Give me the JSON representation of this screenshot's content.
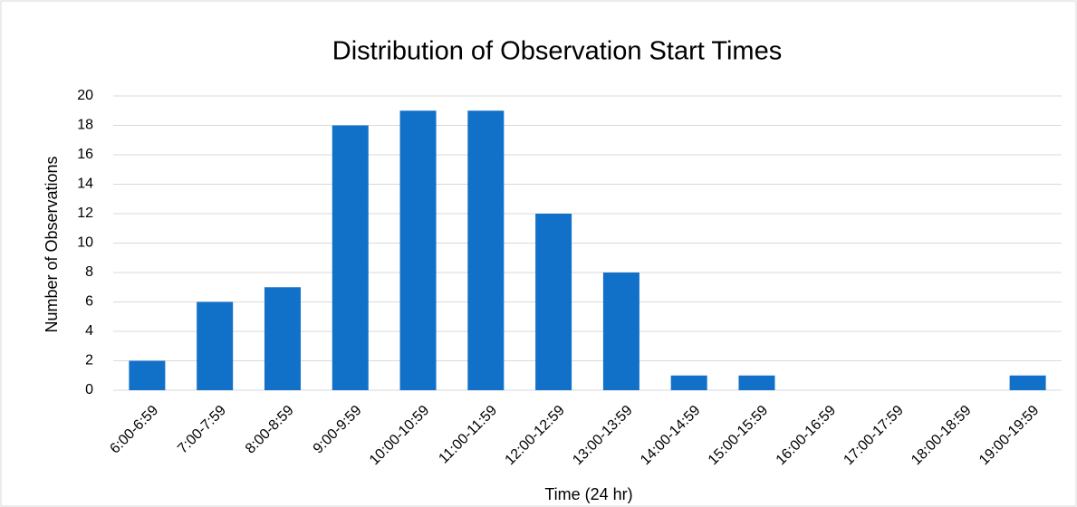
{
  "chart_data": {
    "type": "bar",
    "title": "Distribution of Observation Start Times",
    "x_label": "Time (24 hr)",
    "y_label": "Number of Observations",
    "categories": [
      "6:00-6:59",
      "7:00-7:59",
      "8:00-8:59",
      "9:00-9:59",
      "10:00-10:59",
      "11:00-11:59",
      "12:00-12:59",
      "13:00-13:59",
      "14:00-14:59",
      "15:00-15:59",
      "16:00-16:59",
      "17:00-17:59",
      "18:00-18:59",
      "19:00-19:59"
    ],
    "values": [
      2,
      6,
      7,
      18,
      19,
      19,
      12,
      8,
      1,
      1,
      0,
      0,
      0,
      1
    ],
    "color": "#1170c8",
    "ylim": [
      0,
      20
    ],
    "yticks": [
      0,
      2,
      4,
      6,
      8,
      10,
      12,
      14,
      16,
      18,
      20
    ],
    "grid": true
  }
}
